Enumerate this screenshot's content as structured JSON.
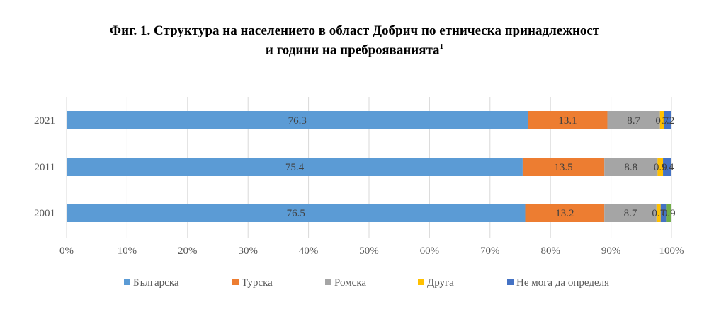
{
  "chart_data": {
    "type": "bar",
    "orientation": "horizontal",
    "stacked": "percent",
    "title_line1": "Фиг. 1. Структура на населението в област Добрич по етническа принадлежност",
    "title_line2": "и  години на преброяванията",
    "title_footnote": "1",
    "categories": [
      "2021",
      "2011",
      "2001"
    ],
    "series": [
      {
        "name": "Българска",
        "color": "#5b9bd5",
        "values": [
          76.3,
          75.4,
          76.5
        ],
        "labels": [
          "76.3",
          "75.4",
          "76.5"
        ]
      },
      {
        "name": "Турска",
        "color": "#ed7d31",
        "values": [
          13.1,
          13.5,
          13.2
        ],
        "labels": [
          "13.1",
          "13.5",
          "13.2"
        ]
      },
      {
        "name": "Ромска",
        "color": "#a5a5a5",
        "values": [
          8.7,
          8.8,
          8.7
        ],
        "labels": [
          "8.7",
          "8.8",
          "8.7"
        ]
      },
      {
        "name": "Друга",
        "color": "#ffc000",
        "values": [
          0.7,
          0.9,
          0.7
        ],
        "labels": [
          "0.7",
          "0.9",
          "0.7"
        ]
      },
      {
        "name": "Не мога да определя",
        "color": "#4472c4",
        "values": [
          1.2,
          1.4,
          0.9
        ],
        "labels": [
          "1.2",
          "1.4",
          ""
        ]
      },
      {
        "name": "",
        "color": "#70ad47",
        "values": [
          0,
          0,
          0.9
        ],
        "labels": [
          "",
          "",
          "0.9"
        ]
      }
    ],
    "xlim": [
      0,
      100
    ],
    "xticks": [
      "0%",
      "10%",
      "20%",
      "30%",
      "40%",
      "50%",
      "60%",
      "70%",
      "80%",
      "90%",
      "100%"
    ],
    "grid": true,
    "legend": "bottom"
  }
}
